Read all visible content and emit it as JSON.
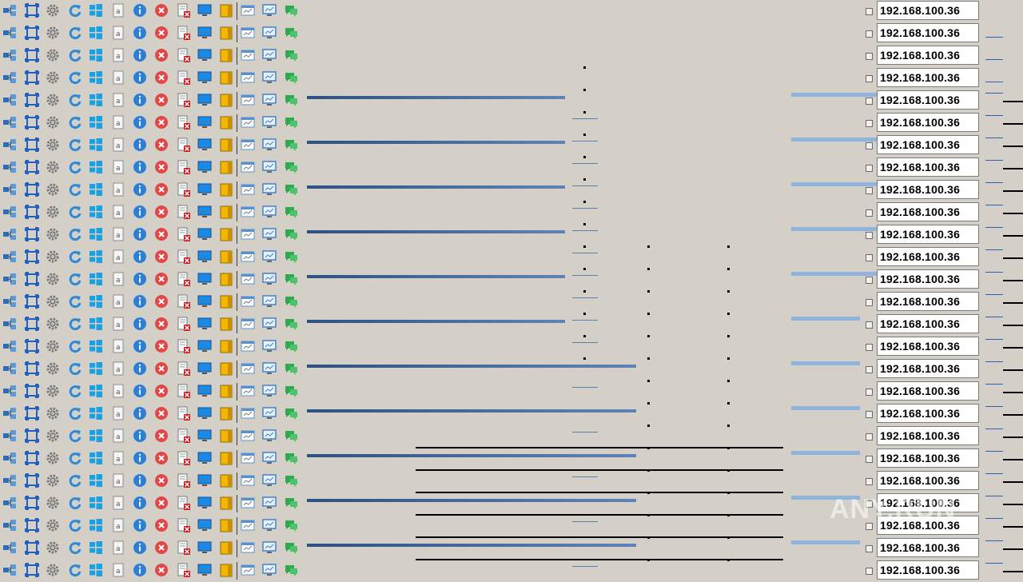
{
  "window": {
    "ip_address": "192.168.100.36",
    "row_count": 26
  },
  "toolbar": {
    "buttons": [
      {
        "name": "network-connections-icon",
        "color": "#2a6ebb"
      },
      {
        "name": "screen-capture-icon",
        "color": "#1f5fbf"
      },
      {
        "name": "settings-gear-icon",
        "color": "#7a7a7a"
      },
      {
        "name": "refresh-icon",
        "color": "#2d8ad8"
      },
      {
        "name": "windows-logo-icon",
        "color": "#1ba1e2"
      },
      {
        "name": "document-a-icon",
        "color": "#8a8a8a"
      },
      {
        "name": "info-icon",
        "color": "#2c7fd6"
      },
      {
        "name": "close-red-icon",
        "color": "#e04848"
      },
      {
        "name": "remove-file-icon",
        "color": "#c02020"
      },
      {
        "name": "monitor-icon",
        "color": "#1e88e5"
      },
      {
        "name": "folder-yellow-icon",
        "color": "#f2b705"
      },
      {
        "name": "window-small-icon",
        "color": "#5a8fd0"
      },
      {
        "name": "desktop-monitor-icon",
        "color": "#3a7cc8"
      },
      {
        "name": "chat-bubble-icon",
        "color": "#2fa84f"
      }
    ]
  },
  "watermark": "ANY.RUN"
}
